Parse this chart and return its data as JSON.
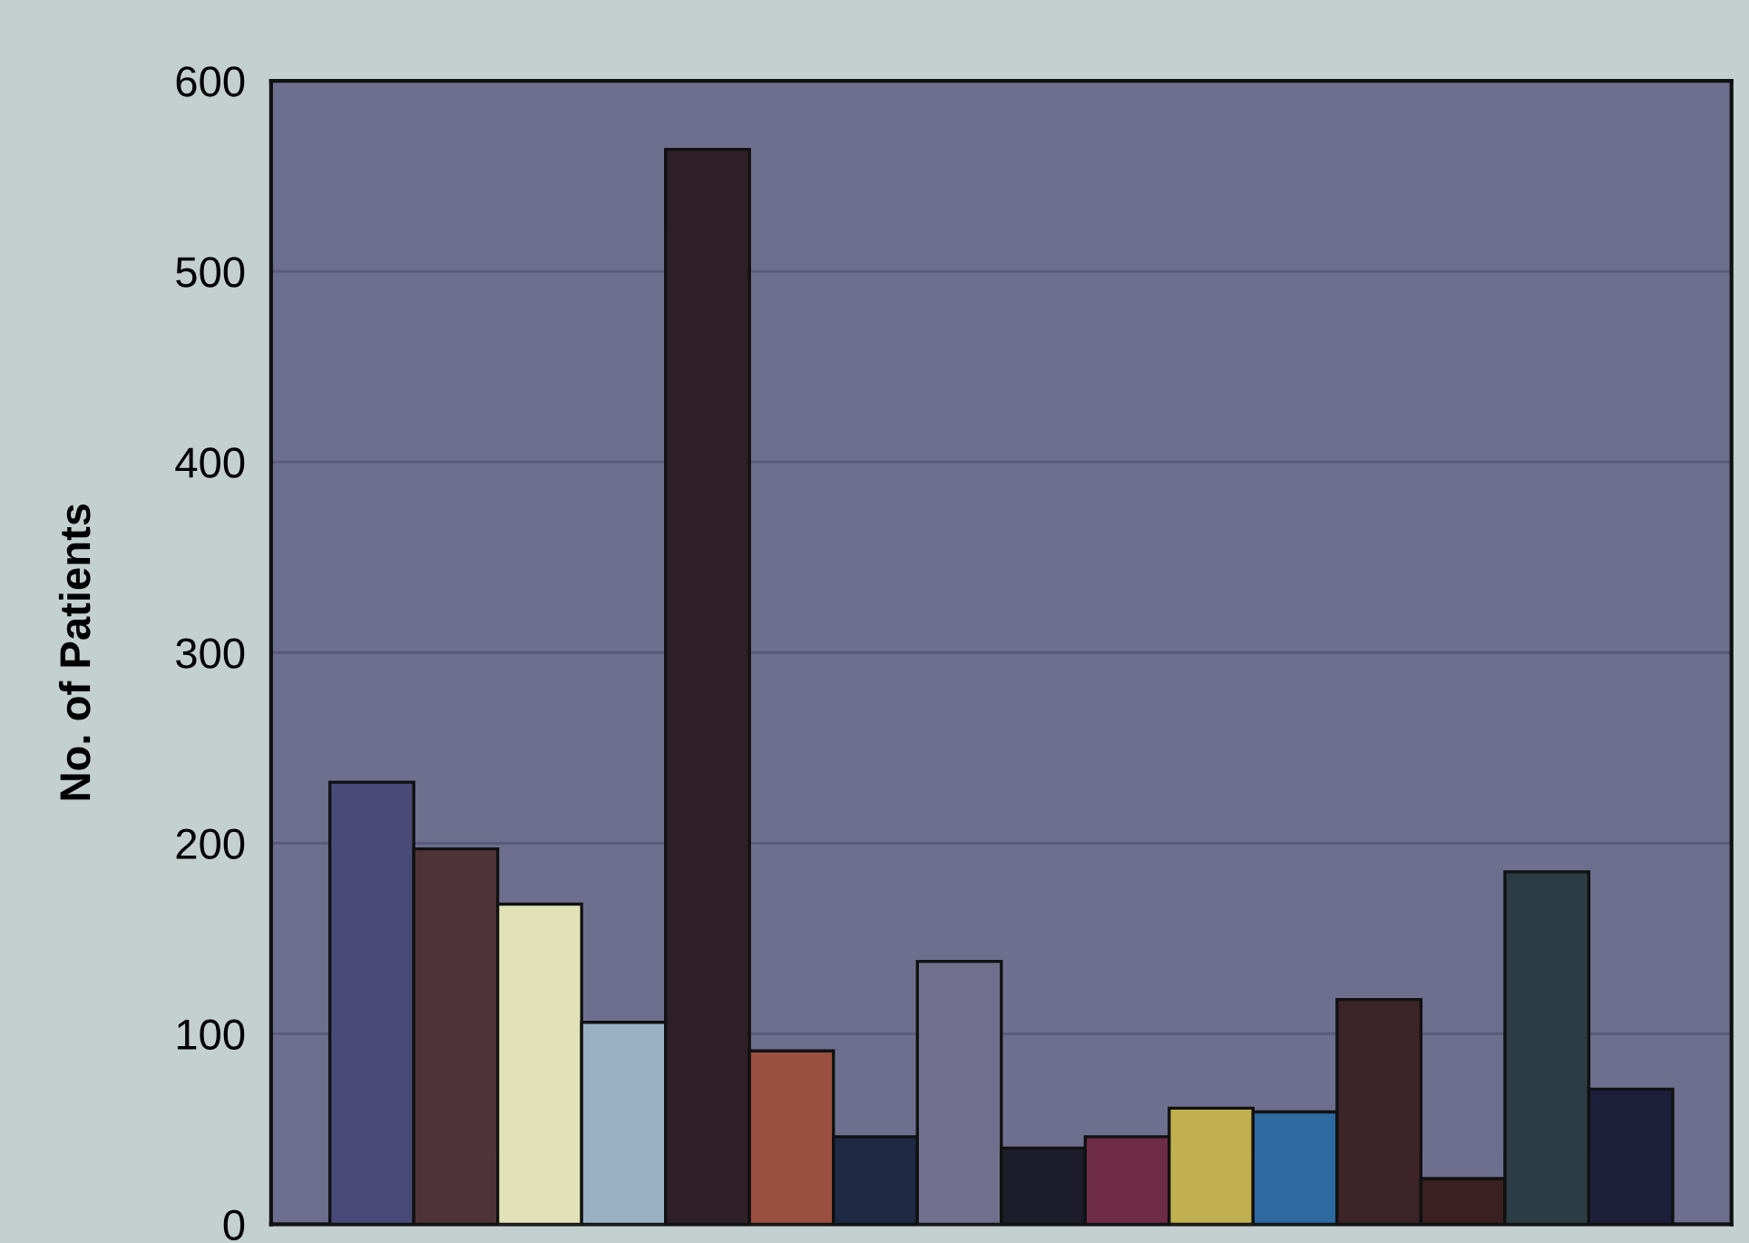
{
  "chart_data": {
    "type": "bar",
    "ylabel": "No. of Patients",
    "categories": [
      null,
      null,
      null,
      null,
      null,
      null,
      null,
      null,
      null,
      null,
      null,
      null,
      null,
      null,
      null,
      null
    ],
    "values": [
      232,
      197,
      168,
      106,
      564,
      91,
      46,
      138,
      40,
      46,
      61,
      59,
      118,
      24,
      185,
      71
    ],
    "colors": [
      "#4a4a78",
      "#4e3438",
      "#e2e2b8",
      "#9ab0c4",
      "#2e2026",
      "#9a5040",
      "#1e2a44",
      "#70708e",
      "#1c1c2a",
      "#6e2c46",
      "#c0b050",
      "#2e6aa0",
      "#3c2428",
      "#3a2020",
      "#2c3c44",
      "#1c1e3a"
    ],
    "ylim": [
      0,
      600
    ],
    "yticks": [
      0,
      100,
      200,
      300,
      400,
      500,
      600
    ],
    "grid": "y"
  }
}
